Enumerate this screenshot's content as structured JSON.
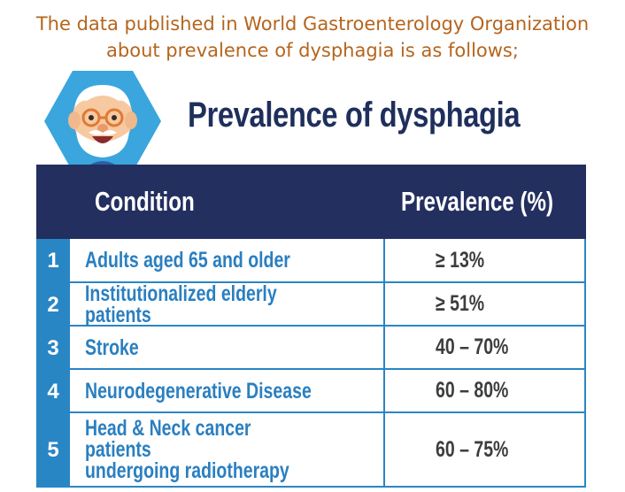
{
  "intro": {
    "line1": "The data published in World Gastroenterology Organization",
    "line2": "about prevalence of dysphagia is as follows;"
  },
  "title": "Prevalence of dysphagia",
  "avatar_icon": "elderly-man-avatar",
  "colors": {
    "intro_text": "#b5651d",
    "title": "#1f2f5c",
    "header_bg": "#232f5f",
    "accent_blue": "#2986c5",
    "condition_text": "#2a7fc0",
    "prevalence_text": "#3d3d3d",
    "hexagon": "#3aa6dd"
  },
  "table": {
    "headers": {
      "condition": "Condition",
      "prevalence": "Prevalence (%)"
    },
    "rows": [
      {
        "num": "1",
        "condition": "Adults aged 65 and older",
        "prevalence": "≥ 13%"
      },
      {
        "num": "2",
        "condition": "Institutionalized elderly patients",
        "prevalence": "≥ 51%"
      },
      {
        "num": "3",
        "condition": "Stroke",
        "prevalence": "40 – 70%"
      },
      {
        "num": "4",
        "condition": "Neurodegenerative Disease",
        "prevalence": "60 – 80%"
      },
      {
        "num": "5",
        "condition": "Head & Neck cancer patients\nundergoing radiotherapy",
        "prevalence": "60 – 75%"
      }
    ]
  }
}
